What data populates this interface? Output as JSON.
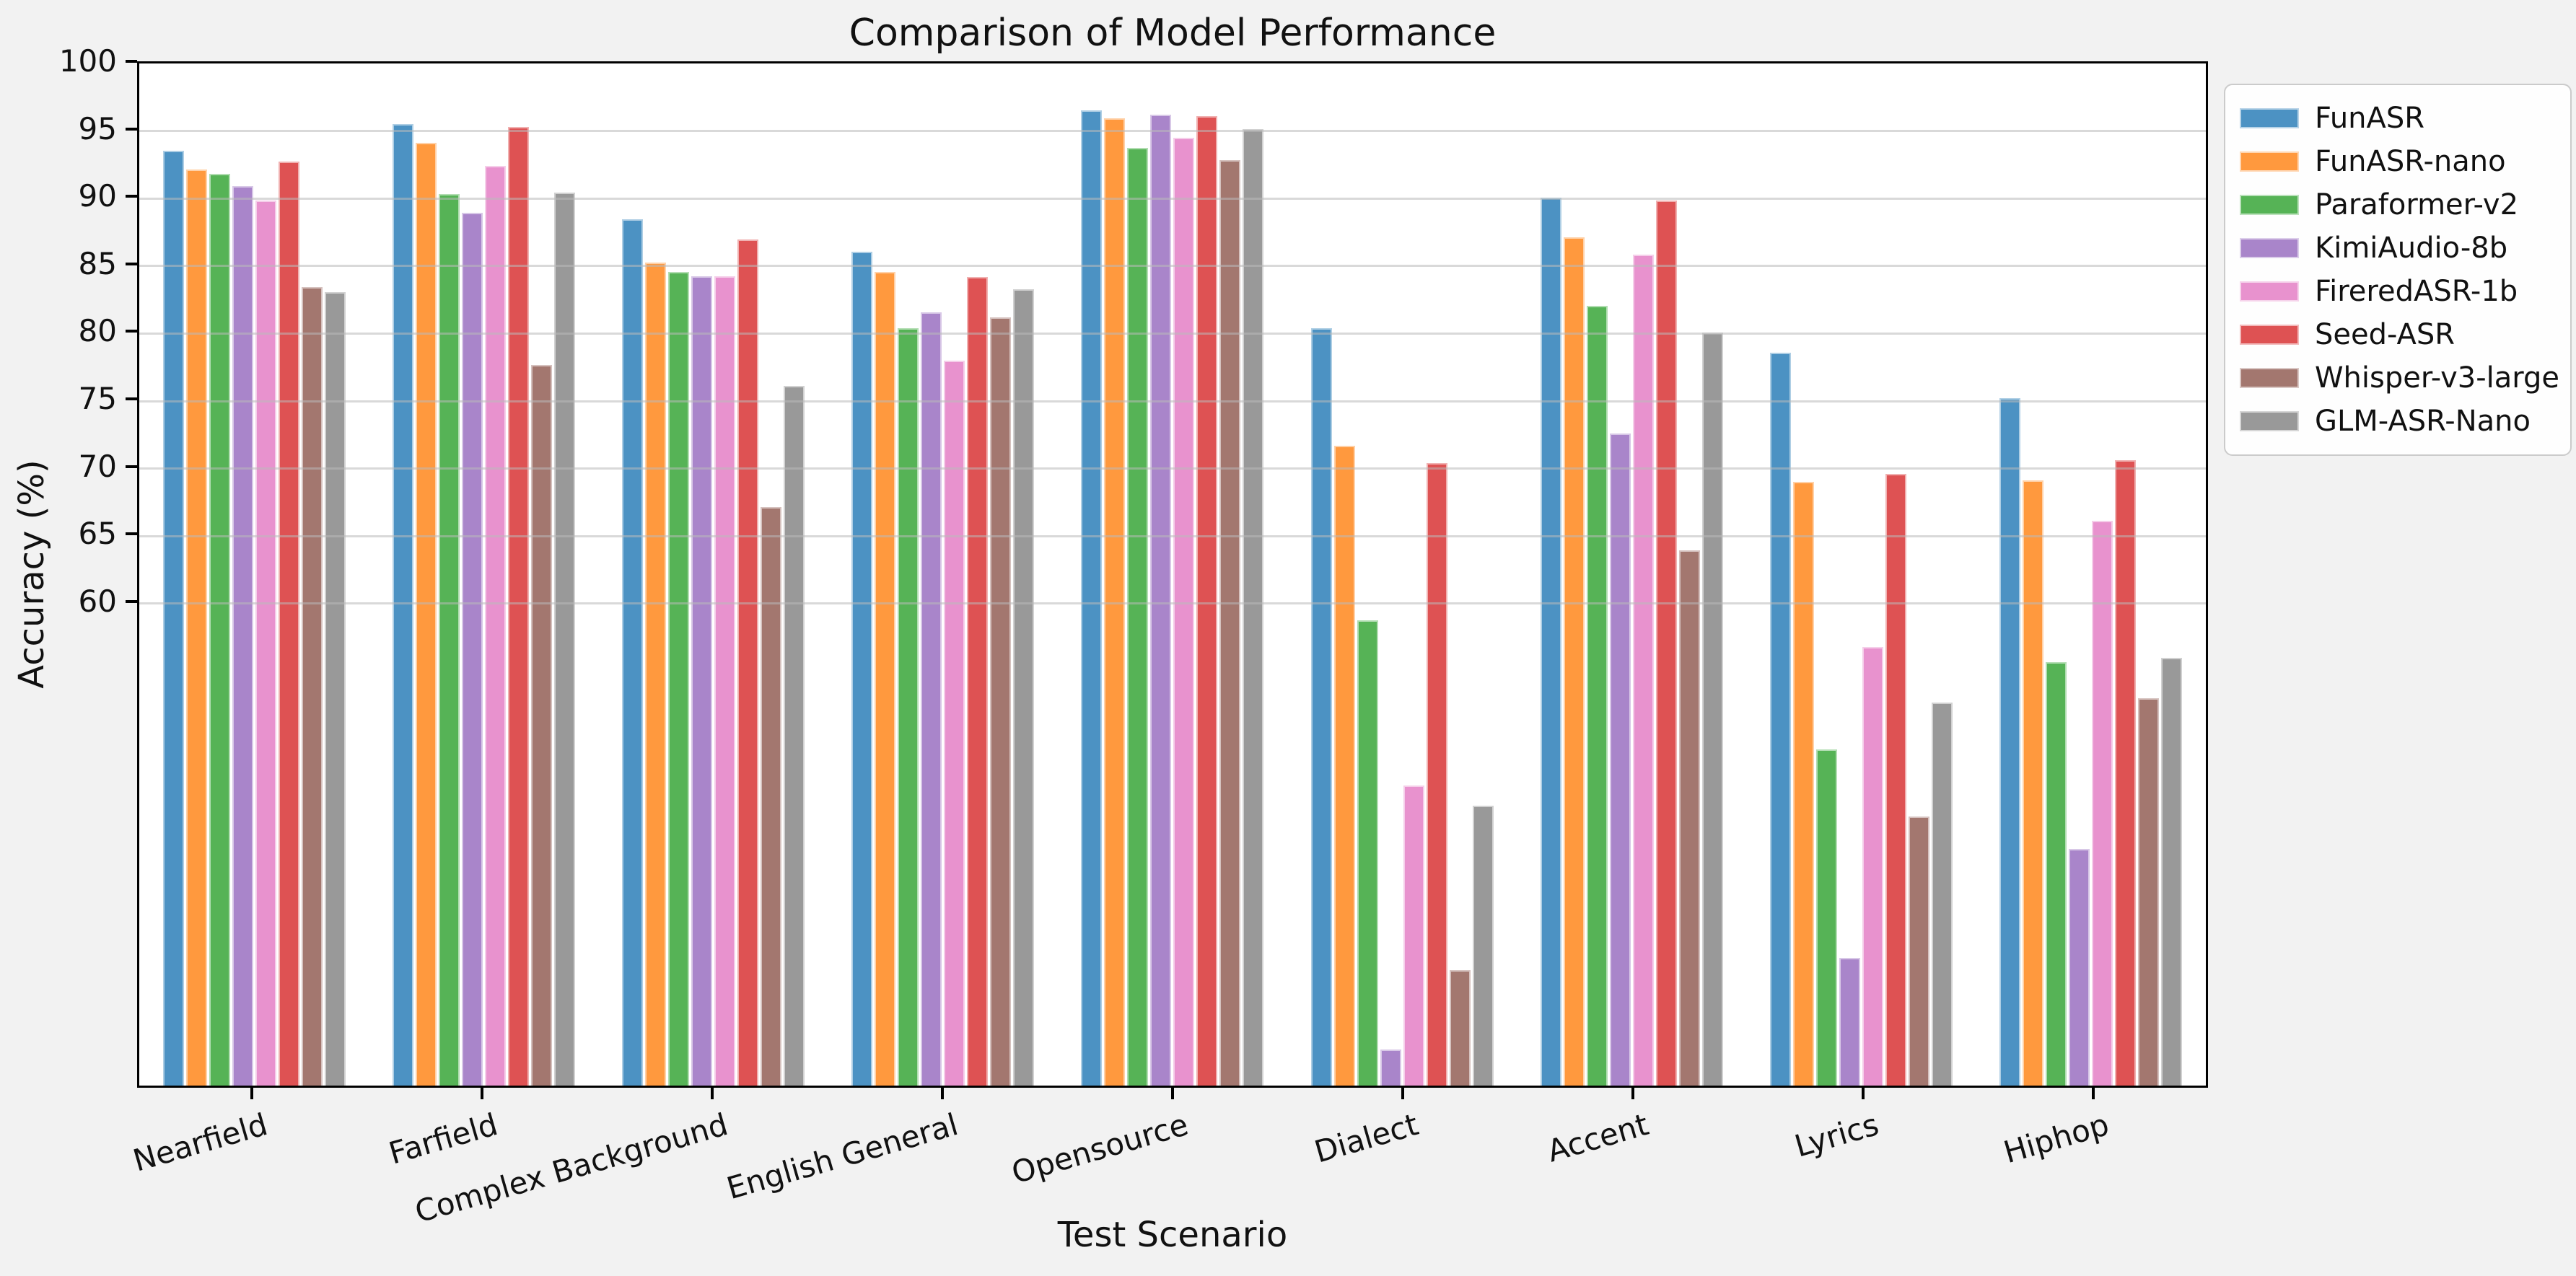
{
  "title": "Comparison of Model Performance",
  "axes": {
    "xlabel": "Test Scenario",
    "ylabel": "Accuracy (%)"
  },
  "chart_data": {
    "type": "bar",
    "title": "Comparison of Model Performance",
    "xlabel": "Test Scenario",
    "ylabel": "Accuracy (%)",
    "ylim": [
      24,
      100
    ],
    "yticks": [
      60,
      65,
      70,
      75,
      80,
      85,
      90,
      95,
      100
    ],
    "grid": true,
    "legend_position": "outside-top-right",
    "categories": [
      "Nearfield",
      "Farfield",
      "Complex Background",
      "English General",
      "Opensource",
      "Dialect",
      "Accent",
      "Lyrics",
      "Hiphop"
    ],
    "series": [
      {
        "name": "FunASR",
        "color": "#4C92C3",
        "values": [
          93.5,
          95.5,
          88.4,
          86.0,
          96.5,
          80.3,
          90.0,
          78.5,
          75.1
        ]
      },
      {
        "name": "FunASR-nano",
        "color": "#FF993E",
        "values": [
          92.1,
          94.1,
          85.2,
          84.5,
          95.9,
          71.6,
          87.1,
          68.9,
          69.0
        ]
      },
      {
        "name": "Paraformer-v2",
        "color": "#56B356",
        "values": [
          91.8,
          90.3,
          84.5,
          80.3,
          93.7,
          58.6,
          82.0,
          49.0,
          55.5
        ]
      },
      {
        "name": "KimiAudio-8b",
        "color": "#A985CA",
        "values": [
          90.9,
          88.9,
          84.2,
          81.5,
          96.2,
          26.7,
          72.5,
          33.5,
          41.6
        ]
      },
      {
        "name": "FireredASR-1b",
        "color": "#E892CE",
        "values": [
          89.8,
          92.4,
          84.2,
          77.9,
          94.5,
          46.3,
          85.8,
          56.6,
          66.0
        ]
      },
      {
        "name": "Seed-ASR",
        "color": "#DE5253",
        "values": [
          92.7,
          95.3,
          86.9,
          84.1,
          96.1,
          70.3,
          89.8,
          69.5,
          70.5
        ]
      },
      {
        "name": "Whisper-v3-large",
        "color": "#A3776F",
        "values": [
          83.4,
          77.6,
          67.0,
          81.1,
          92.8,
          32.6,
          63.8,
          44.0,
          52.8
        ]
      },
      {
        "name": "GLM-ASR-Nano",
        "color": "#999999",
        "values": [
          83.0,
          90.4,
          76.0,
          83.2,
          95.1,
          44.8,
          80.0,
          52.5,
          55.8
        ]
      }
    ]
  },
  "colors": {
    "figure_background": "#f2f2f2",
    "plot_background": "#ffffff",
    "spine": "#000000",
    "gridline": "#b9b9b9"
  }
}
